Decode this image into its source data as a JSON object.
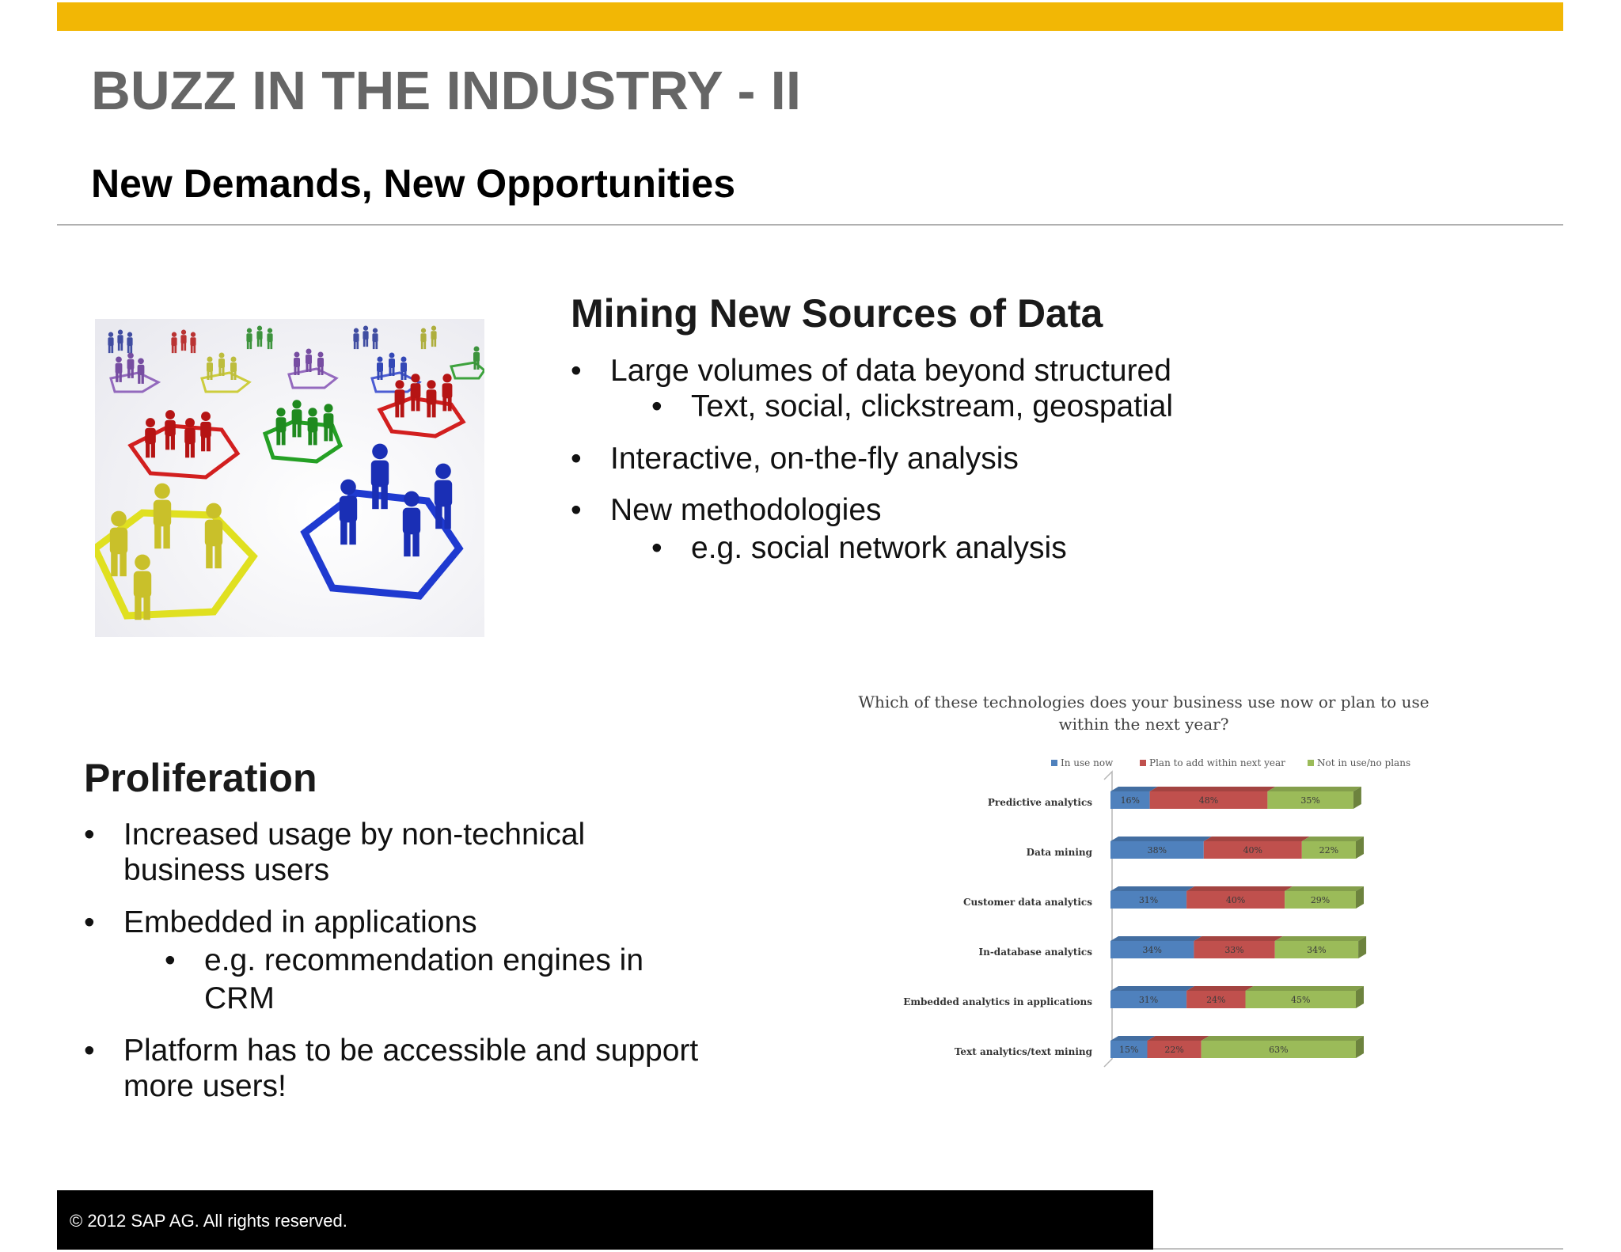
{
  "header": {
    "title": "BUZZ IN THE INDUSTRY - II",
    "subtitle": "New Demands, New Opportunities",
    "accent_color": "#f2b705"
  },
  "image": {
    "subject": "people-network-illustration"
  },
  "mining": {
    "heading": "Mining New Sources of Data",
    "bullets": [
      "Large volumes of data beyond structured",
      "Text, social, clickstream, geospatial",
      "Interactive, on-the-fly analysis",
      "New methodologies",
      "e.g. social network analysis"
    ]
  },
  "proliferation": {
    "heading": "Proliferation",
    "bullets": [
      "Increased usage by non-technical",
      "business users",
      "Embedded in applications",
      "e.g. recommendation engines in",
      "CRM",
      "Platform has to be accessible and support",
      "more users!"
    ]
  },
  "bullet_glyph": "•",
  "chart_data": {
    "type": "bar",
    "orientation": "horizontal-stacked-100",
    "title": "Which of these technologies does your business use now or plan to use within the next year?",
    "title_lines": [
      "Which of these technologies does your business use now or plan to use",
      "within the next year?"
    ],
    "categories": [
      "Predictive analytics",
      "Data mining",
      "Customer data analytics",
      "In-database analytics",
      "Embedded analytics in applications",
      "Text analytics/text mining"
    ],
    "series": [
      {
        "name": "In use now",
        "color": "#4f81bd",
        "values": [
          16,
          38,
          31,
          34,
          31,
          15
        ]
      },
      {
        "name": "Plan to add within next year",
        "color": "#c0504d",
        "values": [
          48,
          40,
          40,
          33,
          24,
          22
        ]
      },
      {
        "name": "Not in use/no plans",
        "color": "#9bbb59",
        "values": [
          35,
          22,
          29,
          34,
          45,
          63
        ]
      }
    ],
    "legend_placement": "top",
    "grid": false
  },
  "footer": {
    "copyright": "©  2012 SAP AG. All rights reserved."
  }
}
